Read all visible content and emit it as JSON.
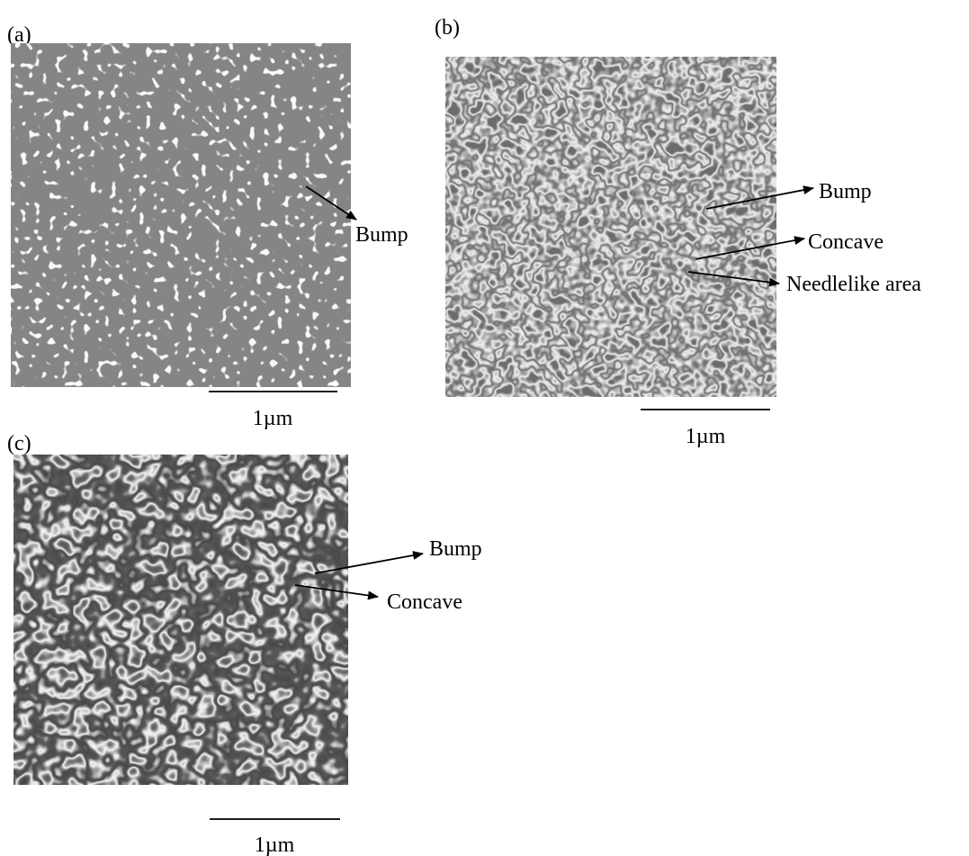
{
  "panels": [
    {
      "label": "(a)",
      "annotations": [
        "Bump"
      ],
      "scale_label": "1µm"
    },
    {
      "label": "(b)",
      "annotations": [
        "Bump",
        "Concave",
        "Needlelike area"
      ],
      "scale_label": "1µm"
    },
    {
      "label": "(c)",
      "annotations": [
        "Bump",
        "Concave"
      ],
      "scale_label": "1µm"
    }
  ]
}
